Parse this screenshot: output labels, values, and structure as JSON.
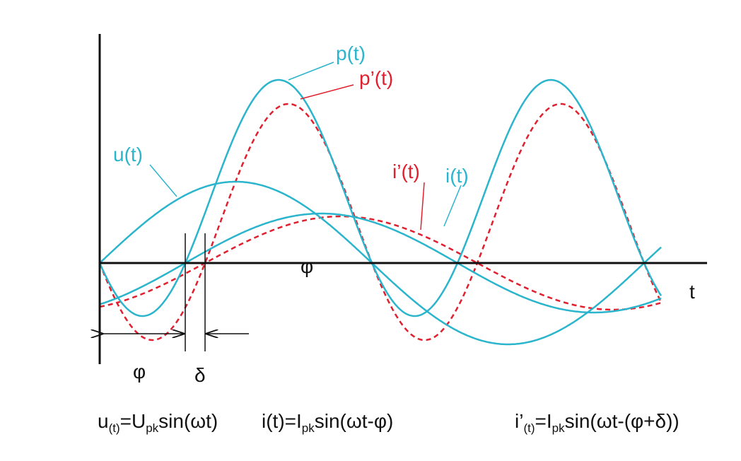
{
  "labels": {
    "p": "p(t)",
    "p_prime": "p’(t)",
    "u": "u(t)",
    "i_prime": "i’(t)",
    "i": "i(t)",
    "phi_axis": "φ",
    "t": "t",
    "phi": "φ",
    "delta": "δ"
  },
  "formulas": [
    {
      "parts": [
        "u",
        "(t)",
        "=U",
        "pk",
        "sin(ωt)"
      ]
    },
    {
      "parts": [
        "i(t)=I",
        "pk",
        "sin(ωt-φ)"
      ]
    },
    {
      "parts": [
        "i’",
        "(t)",
        "=I",
        "pk",
        "sin(ωt-(φ+δ))"
      ]
    }
  ]
}
